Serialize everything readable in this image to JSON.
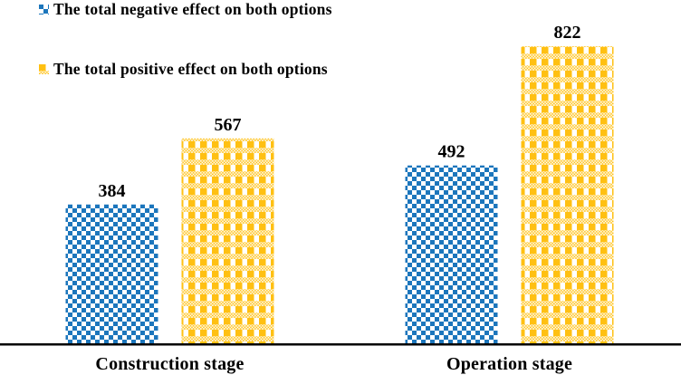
{
  "legend": {
    "position": "top-left",
    "items": [
      {
        "id": "negative",
        "label": "The total negative effect on both options"
      },
      {
        "id": "positive",
        "label": "The total positive effect on both options"
      }
    ]
  },
  "chart_data": {
    "type": "bar",
    "categories": [
      "Construction stage",
      "Operation stage"
    ],
    "series": [
      {
        "name": "The total negative effect on both options",
        "pattern": "checkerboard",
        "color": "#1C76BC",
        "values": [
          384,
          492
        ]
      },
      {
        "name": "The total positive effect on both options",
        "pattern": "plaid",
        "color": "#FFC012",
        "values": [
          567,
          822
        ]
      }
    ],
    "value_labels_shown": true,
    "grid": false,
    "y_axis_shown": false,
    "legend_position": "top-left",
    "axis_line_color": "#000000",
    "text_color": "#000000",
    "background": "#FFFFFF"
  }
}
